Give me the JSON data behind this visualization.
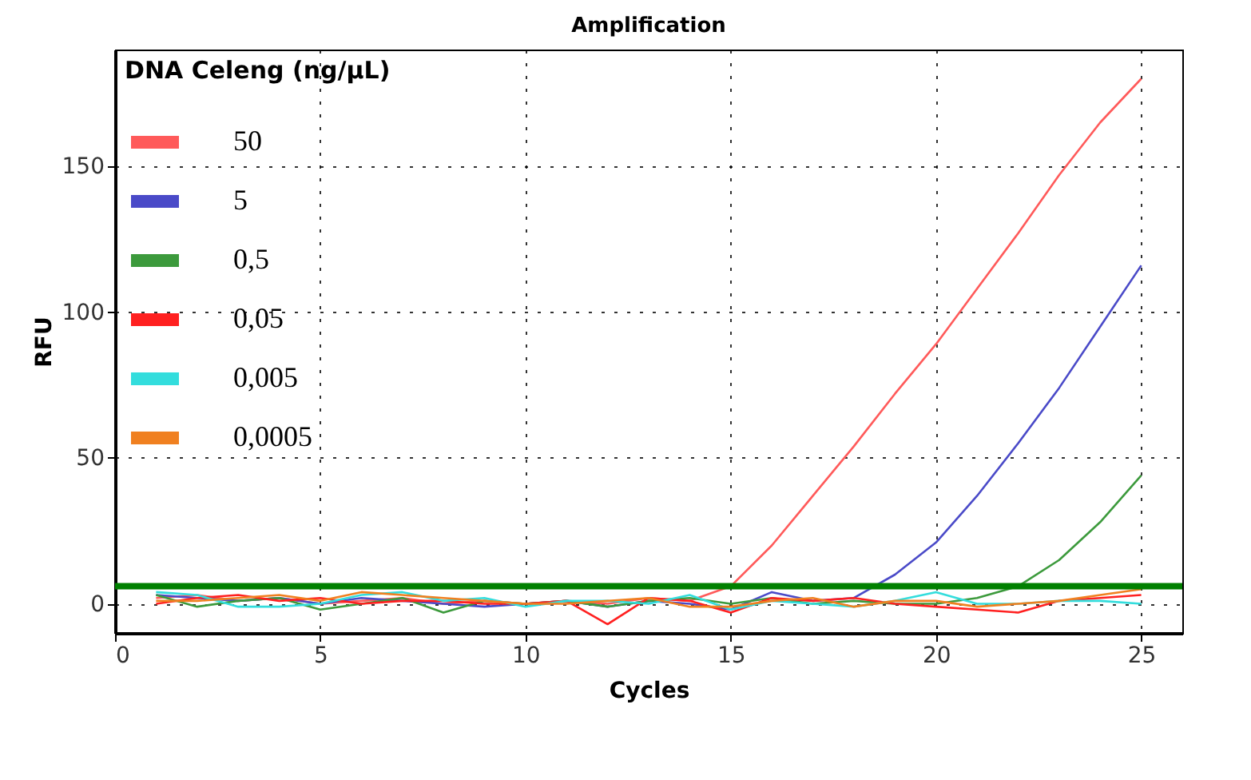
{
  "chart_data": {
    "type": "line",
    "title": "Amplification",
    "xlabel": "Cycles",
    "ylabel": "RFU",
    "legend_title": "DNA Celeng (ng/µL)",
    "x": [
      1,
      2,
      3,
      4,
      5,
      6,
      7,
      8,
      9,
      10,
      11,
      12,
      13,
      14,
      15,
      16,
      17,
      18,
      19,
      20,
      21,
      22,
      23,
      24,
      25
    ],
    "series": [
      {
        "name": "50",
        "color": "#ff5a5a",
        "values": [
          2,
          3,
          1,
          2,
          0,
          1,
          2,
          0,
          1,
          0,
          1,
          0,
          2,
          1,
          6,
          20,
          37,
          54,
          72,
          89,
          108,
          127,
          147,
          165,
          180
        ]
      },
      {
        "name": "5",
        "color": "#4a4ac8",
        "values": [
          3,
          2,
          1,
          2,
          0,
          2,
          1,
          0,
          -1,
          0,
          1,
          -1,
          1,
          0,
          -2,
          4,
          1,
          2,
          10,
          21,
          37,
          55,
          74,
          95,
          116
        ]
      },
      {
        "name": "0,5",
        "color": "#3c9a3c",
        "values": [
          3,
          -1,
          1,
          2,
          -2,
          0,
          2,
          -3,
          1,
          0,
          1,
          -1,
          1,
          2,
          0,
          2,
          0,
          1,
          0,
          0,
          2,
          6,
          15,
          28,
          44
        ]
      },
      {
        "name": "0,05",
        "color": "#ff2020",
        "values": [
          0,
          2,
          3,
          1,
          2,
          0,
          1,
          1,
          0,
          0,
          1,
          -7,
          2,
          1,
          -3,
          2,
          1,
          2,
          0,
          -1,
          -2,
          -3,
          1,
          2,
          3
        ]
      },
      {
        "name": "0,005",
        "color": "#33dddd",
        "values": [
          4,
          3,
          -1,
          -1,
          0,
          3,
          4,
          1,
          2,
          -1,
          1,
          1,
          0,
          3,
          -2,
          1,
          0,
          -1,
          1,
          4,
          0,
          0,
          1,
          1,
          0
        ]
      },
      {
        "name": "0,0005",
        "color": "#f08020",
        "values": [
          1,
          1,
          2,
          3,
          1,
          4,
          3,
          2,
          1,
          0,
          0,
          1,
          2,
          -1,
          -1,
          1,
          2,
          -1,
          1,
          1,
          -1,
          0,
          1,
          3,
          5
        ]
      }
    ],
    "xlim": [
      0,
      26
    ],
    "ylim": [
      -10,
      190
    ],
    "xticks": [
      0,
      5,
      10,
      15,
      20,
      25
    ],
    "yticks": [
      0,
      50,
      100,
      150
    ],
    "ref_lines": [
      {
        "axis": "y",
        "value": 6,
        "color": "#008000"
      }
    ],
    "grid": true,
    "legend": "top left",
    "marker": "none",
    "line_style": "solid"
  }
}
